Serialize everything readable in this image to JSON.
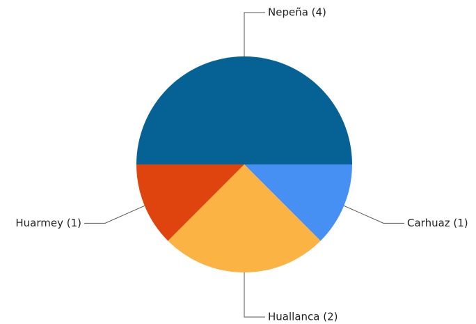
{
  "chart_data": {
    "type": "pie",
    "categories": [
      "Nepeña (4)",
      "Carhuaz (1)",
      "Huallanca (2)",
      "Huarmey (1)"
    ],
    "values": [
      4,
      1,
      2,
      1
    ],
    "colors": [
      "#066294",
      "#4590f2",
      "#fbb443",
      "#e0440e"
    ]
  }
}
